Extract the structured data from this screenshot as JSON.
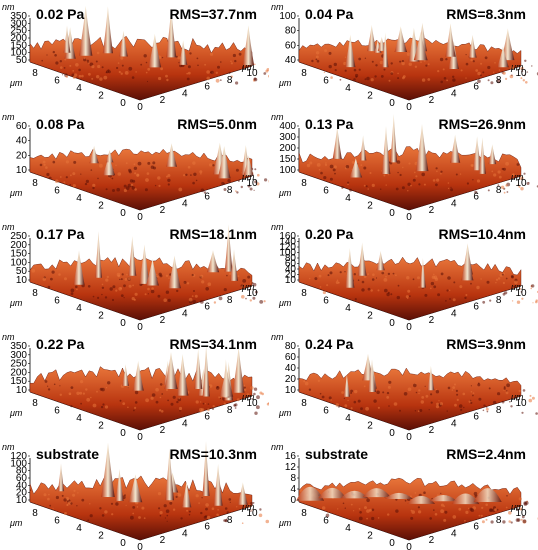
{
  "panels": [
    {
      "pressure": "0.02 Pa",
      "rms": "RMS=37.7nm",
      "z_ticks": [
        "350",
        "300",
        "250",
        "200",
        "150",
        "100",
        "50"
      ],
      "z_unit": "nm",
      "y_ticks": [
        "8",
        "6",
        "4",
        "2",
        "0"
      ],
      "x_ticks": [
        "0",
        "2",
        "4",
        "6",
        "8",
        "10"
      ],
      "unit": "μm",
      "seed": 1,
      "amp": 52,
      "peaks": 9
    },
    {
      "pressure": "0.04 Pa",
      "rms": "RMS=8.3nm",
      "z_ticks": [
        "100",
        "80",
        "60",
        "40"
      ],
      "z_unit": "nm",
      "y_ticks": [
        "8",
        "6",
        "4",
        "2",
        "0"
      ],
      "x_ticks": [
        "0",
        "2",
        "4",
        "6",
        "8",
        "10"
      ],
      "unit": "μm",
      "seed": 2,
      "amp": 30,
      "peaks": 14
    },
    {
      "pressure": "0.08 Pa",
      "rms": "RMS=5.0nm",
      "z_ticks": [
        "60",
        "40",
        "20",
        "10"
      ],
      "z_unit": "nm",
      "y_ticks": [
        "8",
        "6",
        "4",
        "2",
        "0"
      ],
      "x_ticks": [
        "0",
        "2",
        "4",
        "6",
        "8",
        "10"
      ],
      "unit": "μm",
      "seed": 3,
      "amp": 28,
      "peaks": 8
    },
    {
      "pressure": "0.13 Pa",
      "rms": "RMS=26.9nm",
      "z_ticks": [
        "400",
        "300",
        "200",
        "150",
        "100"
      ],
      "z_unit": "nm",
      "y_ticks": [
        "8",
        "6",
        "4",
        "2",
        "0"
      ],
      "x_ticks": [
        "0",
        "2",
        "4",
        "6",
        "8",
        "10"
      ],
      "unit": "μm",
      "seed": 4,
      "amp": 42,
      "peaks": 10
    },
    {
      "pressure": "0.17 Pa",
      "rms": "RMS=18.1nm",
      "z_ticks": [
        "250",
        "200",
        "150",
        "100",
        "50",
        "10"
      ],
      "z_unit": "nm",
      "y_ticks": [
        "8",
        "6",
        "4",
        "2",
        "0"
      ],
      "x_ticks": [
        "0",
        "2",
        "4",
        "6",
        "8",
        "10"
      ],
      "unit": "μm",
      "seed": 5,
      "amp": 40,
      "peaks": 9
    },
    {
      "pressure": "0.20 Pa",
      "rms": "RMS=10.4nm",
      "z_ticks": [
        "160",
        "140",
        "120",
        "100",
        "80",
        "60",
        "40",
        "20",
        "10"
      ],
      "z_unit": "nm",
      "y_ticks": [
        "8",
        "6",
        "4",
        "2",
        "0"
      ],
      "x_ticks": [
        "0",
        "2",
        "4",
        "6",
        "8",
        "10"
      ],
      "unit": "μm",
      "seed": 6,
      "amp": 34,
      "peaks": 6
    },
    {
      "pressure": "0.22 Pa",
      "rms": "RMS=34.1nm",
      "z_ticks": [
        "350",
        "300",
        "250",
        "200",
        "150",
        "10"
      ],
      "z_unit": "nm",
      "y_ticks": [
        "8",
        "6",
        "4",
        "2",
        "0"
      ],
      "x_ticks": [
        "0",
        "2",
        "4",
        "6",
        "8",
        "10"
      ],
      "unit": "μm",
      "seed": 7,
      "amp": 44,
      "peaks": 12
    },
    {
      "pressure": "0.24 Pa",
      "rms": "RMS=3.9nm",
      "z_ticks": [
        "80",
        "60",
        "40",
        "20",
        "10"
      ],
      "z_unit": "nm",
      "y_ticks": [
        "8",
        "6",
        "4",
        "2",
        "0"
      ],
      "x_ticks": [
        "0",
        "2",
        "4",
        "6",
        "8",
        "10"
      ],
      "unit": "μm",
      "seed": 8,
      "amp": 30,
      "peaks": 5
    },
    {
      "pressure": "substrate",
      "rms": "RMS=10.3nm",
      "z_ticks": [
        "120",
        "100",
        "80",
        "60",
        "40",
        "20",
        "10"
      ],
      "z_unit": "nm",
      "y_ticks": [
        "8",
        "6",
        "4",
        "2",
        "0"
      ],
      "x_ticks": [
        "0",
        "2",
        "4",
        "6",
        "8",
        "10"
      ],
      "unit": "μm",
      "seed": 9,
      "amp": 46,
      "peaks": 10
    },
    {
      "pressure": "substrate",
      "rms": "RMS=2.4nm",
      "z_ticks": [
        "16",
        "12",
        "8",
        "4",
        "0"
      ],
      "z_unit": "nm",
      "y_ticks": [
        "8",
        "6",
        "4",
        "2",
        "0"
      ],
      "x_ticks": [
        "0",
        "2",
        "4",
        "6",
        "8",
        "10"
      ],
      "unit": "μm",
      "seed": 10,
      "amp": 30,
      "peaks": 0
    }
  ],
  "colors": {
    "surface_dark": "#5a0f06",
    "surface_mid": "#b8340f",
    "surface_light": "#e8753a",
    "peak_highlight": "#f3e6cf"
  }
}
